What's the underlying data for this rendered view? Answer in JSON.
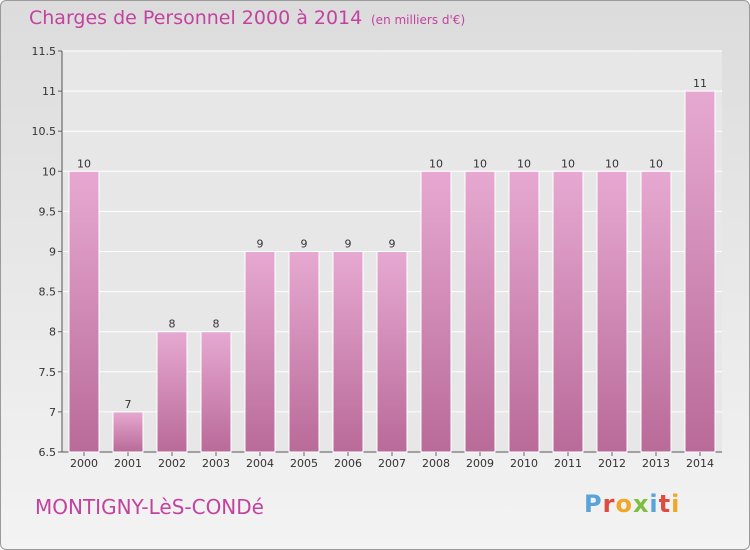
{
  "header": {
    "title": "Charges de Personnel 2000 à 2014",
    "subtitle": "(en milliers d'€)"
  },
  "footer": {
    "commune": "MONTIGNY-LèS-CONDé",
    "logo": "Proxiti"
  },
  "colors": {
    "accent": "#c2439f",
    "bar_top": "#e6a9d1",
    "bar_bottom": "#b96a98",
    "logo_letters": [
      "#5aa3d8",
      "#e04b3f",
      "#f0a626",
      "#7dbf3f",
      "#5aa3d8",
      "#e04b3f",
      "#f0a626"
    ]
  },
  "chart_data": {
    "type": "bar",
    "title": "Charges de Personnel 2000 à 2014",
    "subtitle": "(en milliers d'€)",
    "categories": [
      "2000",
      "2001",
      "2002",
      "2003",
      "2004",
      "2005",
      "2006",
      "2007",
      "2008",
      "2009",
      "2010",
      "2011",
      "2012",
      "2013",
      "2014"
    ],
    "values": [
      10,
      7,
      8,
      8,
      9,
      9,
      9,
      9,
      10,
      10,
      10,
      10,
      10,
      10,
      11
    ],
    "labels": [
      "10",
      "7",
      "8",
      "8",
      "9",
      "9",
      "9",
      "9",
      "10",
      "10",
      "10",
      "10",
      "10",
      "10",
      "11"
    ],
    "ylim": [
      6.5,
      11.5
    ],
    "yticks": [
      6.5,
      7,
      7.5,
      8,
      8.5,
      9,
      9.5,
      10,
      10.5,
      11,
      11.5
    ],
    "ytick_labels": [
      "6.5",
      "7",
      "7.5",
      "8",
      "8.5",
      "9",
      "9.5",
      "10",
      "10.5",
      "11",
      "11.5"
    ],
    "xlabel": "",
    "ylabel": "",
    "grid": "horizontal"
  }
}
